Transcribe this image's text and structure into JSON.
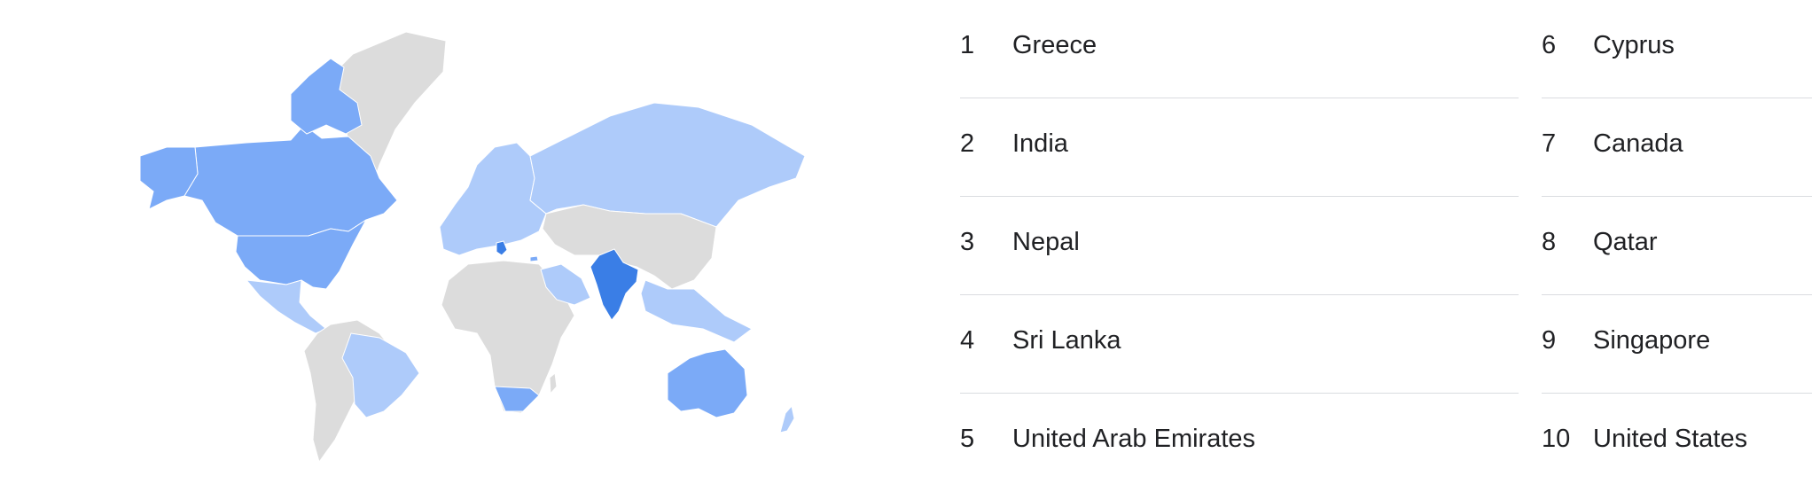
{
  "colors": {
    "no_data": "#dcdcdc",
    "low": "#aecbfa",
    "medium": "#7baaf7",
    "high": "#4285f4",
    "top": "#3a7ee6",
    "divider": "#dadce0"
  },
  "map": {
    "label": "Interest by region map",
    "regions": [
      {
        "name": "Greenland",
        "level": "none"
      },
      {
        "name": "Canada",
        "level": "medium"
      },
      {
        "name": "United States",
        "level": "medium"
      },
      {
        "name": "Mexico",
        "level": "low"
      },
      {
        "name": "Brazil",
        "level": "low"
      },
      {
        "name": "South America",
        "level": "none"
      },
      {
        "name": "Europe",
        "level": "low"
      },
      {
        "name": "Greece",
        "level": "top"
      },
      {
        "name": "Cyprus",
        "level": "medium"
      },
      {
        "name": "Russia",
        "level": "low"
      },
      {
        "name": "Africa",
        "level": "none"
      },
      {
        "name": "South Africa",
        "level": "medium"
      },
      {
        "name": "Saudi Arabia",
        "level": "low"
      },
      {
        "name": "Asia",
        "level": "none"
      },
      {
        "name": "India",
        "level": "top"
      },
      {
        "name": "Southeast Asia",
        "level": "low"
      },
      {
        "name": "Australia",
        "level": "medium"
      },
      {
        "name": "New Zealand",
        "level": "low"
      }
    ]
  },
  "rankings": {
    "column_a": [
      {
        "rank": "1",
        "name": "Greece"
      },
      {
        "rank": "2",
        "name": "India"
      },
      {
        "rank": "3",
        "name": "Nepal"
      },
      {
        "rank": "4",
        "name": "Sri Lanka"
      },
      {
        "rank": "5",
        "name": "United Arab Emirates"
      }
    ],
    "column_b": [
      {
        "rank": "6",
        "name": "Cyprus"
      },
      {
        "rank": "7",
        "name": "Canada"
      },
      {
        "rank": "8",
        "name": "Qatar"
      },
      {
        "rank": "9",
        "name": "Singapore"
      },
      {
        "rank": "10",
        "name": "United States"
      }
    ]
  }
}
